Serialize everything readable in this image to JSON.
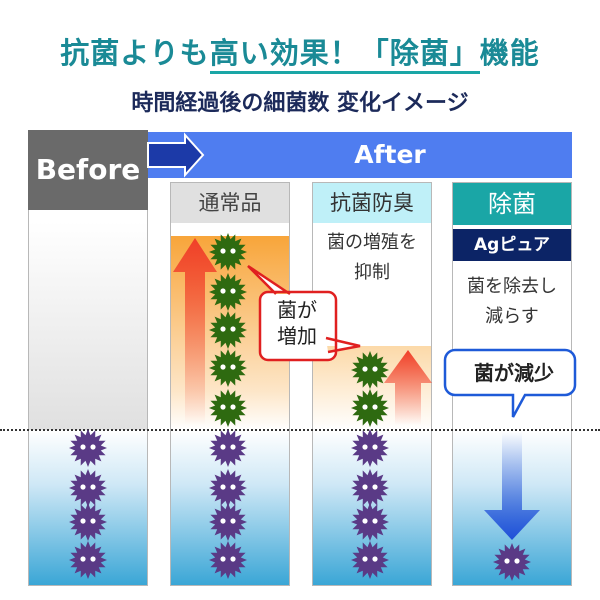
{
  "title": {
    "pre": "抗菌よりも",
    "underlined": "高い効果！「除菌」",
    "post": "機能"
  },
  "subtitle": "時間経過後の細菌数 変化イメージ",
  "before_label": "Before",
  "after_label": "After",
  "columns": [
    {
      "header": "通常品",
      "callout": "菌が\n増加"
    },
    {
      "header": "抗菌防臭",
      "desc": "菌の増殖を\n抑制"
    },
    {
      "header": "除菌",
      "badge": "Agピュア",
      "desc": "菌を除去し\n減らす",
      "callout": "菌が減少"
    }
  ],
  "colors": {
    "teal": "#1a8a96",
    "navy": "#1c2a5a",
    "after_blue": "#4f7df0",
    "germ_green": "#2e6a10",
    "germ_purple": "#5a3a86",
    "red_arrow": "#f0402a",
    "blue_arrow": "#2050d8"
  }
}
